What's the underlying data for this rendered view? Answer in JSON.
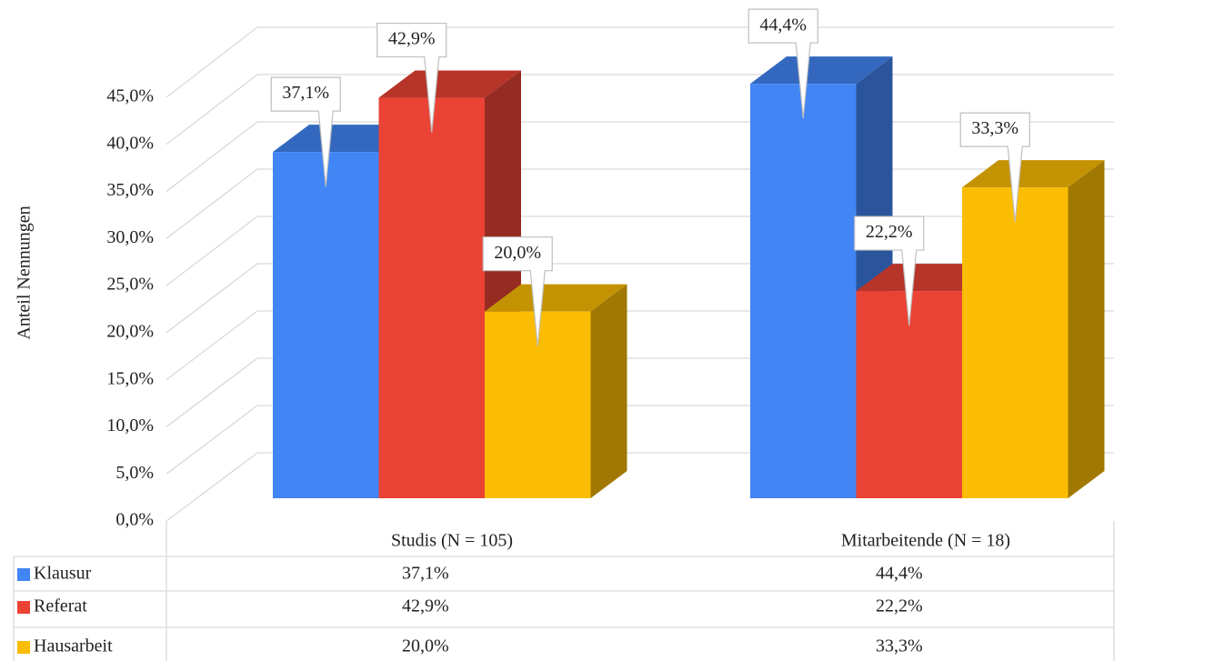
{
  "chart_data": {
    "type": "bar3d",
    "y_axis_label": "Anteil Nennungen",
    "categories": [
      "Studis (N = 105)",
      "Mitarbeitende (N = 18)"
    ],
    "series": [
      {
        "name": "Klausur",
        "color": "#4285f4",
        "values": [
          37.1,
          44.4
        ],
        "value_labels": [
          "37,1%",
          "44,4%"
        ]
      },
      {
        "name": "Referat",
        "color": "#ea4335",
        "values": [
          42.9,
          22.2
        ],
        "value_labels": [
          "42,9%",
          "22,2%"
        ]
      },
      {
        "name": "Hausarbeit",
        "color": "#fbbc04",
        "values": [
          20.0,
          33.3
        ],
        "value_labels": [
          "20,0%",
          "33,3%"
        ]
      }
    ],
    "ylim": [
      0,
      45
    ],
    "yticks": [
      {
        "value": 0,
        "label": "0,0%"
      },
      {
        "value": 5,
        "label": "5,0%"
      },
      {
        "value": 10,
        "label": "10,0%"
      },
      {
        "value": 15,
        "label": "15,0%"
      },
      {
        "value": 20,
        "label": "20,0%"
      },
      {
        "value": 25,
        "label": "25,0%"
      },
      {
        "value": 30,
        "label": "30,0%"
      },
      {
        "value": 35,
        "label": "35,0%"
      },
      {
        "value": 40,
        "label": "40,0%"
      },
      {
        "value": 45,
        "label": "45,0%"
      }
    ],
    "grid": true,
    "data_table": true
  }
}
